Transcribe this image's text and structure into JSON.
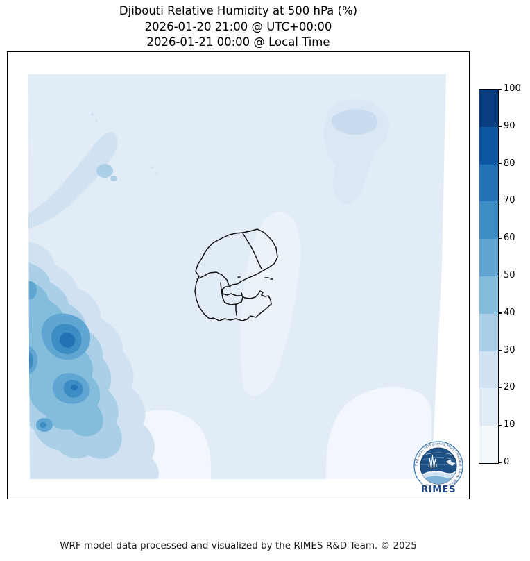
{
  "title": {
    "line1": "Djibouti Relative Humidity at 500 hPa (%)",
    "line2": "2026-01-20 21:00 @ UTC+00:00",
    "line3": "2026-01-21 00:00 @ Local Time"
  },
  "footer": {
    "credit": "WRF model data processed and visualized by the RIMES R&D Team. © 2025"
  },
  "logo": {
    "name": "RIMES",
    "ring_text": "Regional Integrated Multi-Hazard Early Warning System",
    "accent_dark": "#1d5185",
    "accent_text": "#1c4687"
  },
  "chart_data": {
    "type": "heatmap",
    "subtype": "filled_contour_weather_map",
    "title": "Djibouti Relative Humidity at 500 hPa (%)",
    "valid_time_utc": "2026-01-20 21:00 @ UTC+00:00",
    "valid_time_local": "2026-01-21 00:00 @ Local Time",
    "variable": "Relative Humidity",
    "pressure_level": "500 hPa",
    "units": "%",
    "map_overlay": "Djibouti national and regional administrative boundaries",
    "colorbar": {
      "orientation": "vertical",
      "position": "right",
      "range": [
        0,
        100
      ],
      "ticks": [
        0,
        10,
        20,
        30,
        40,
        50,
        60,
        70,
        80,
        90,
        100
      ],
      "bin_colors": [
        "#f3f8fd",
        "#e2ecf7",
        "#d0e1f2",
        "#abcfe6",
        "#84bcdb",
        "#60a6d2",
        "#3d8dc4",
        "#2272b6",
        "#0d57a2",
        "#083e80"
      ]
    },
    "field_summary": [
      {
        "area": "majority of domain (background)",
        "rh_pct": "10-20"
      },
      {
        "area": "west-edge maximum core, upper lobe",
        "rh_pct": "70-80"
      },
      {
        "area": "west-edge maximum core, lower lobe",
        "rh_pct": "70-80"
      },
      {
        "area": "broad western band",
        "rh_pct": "20-60"
      },
      {
        "area": "northwest diagonal band",
        "rh_pct": "20-30"
      },
      {
        "area": "northeast (Red Sea) blob",
        "rh_pct": "20-30"
      },
      {
        "area": "south-central and southeast patches",
        "rh_pct": "0-10"
      }
    ]
  }
}
